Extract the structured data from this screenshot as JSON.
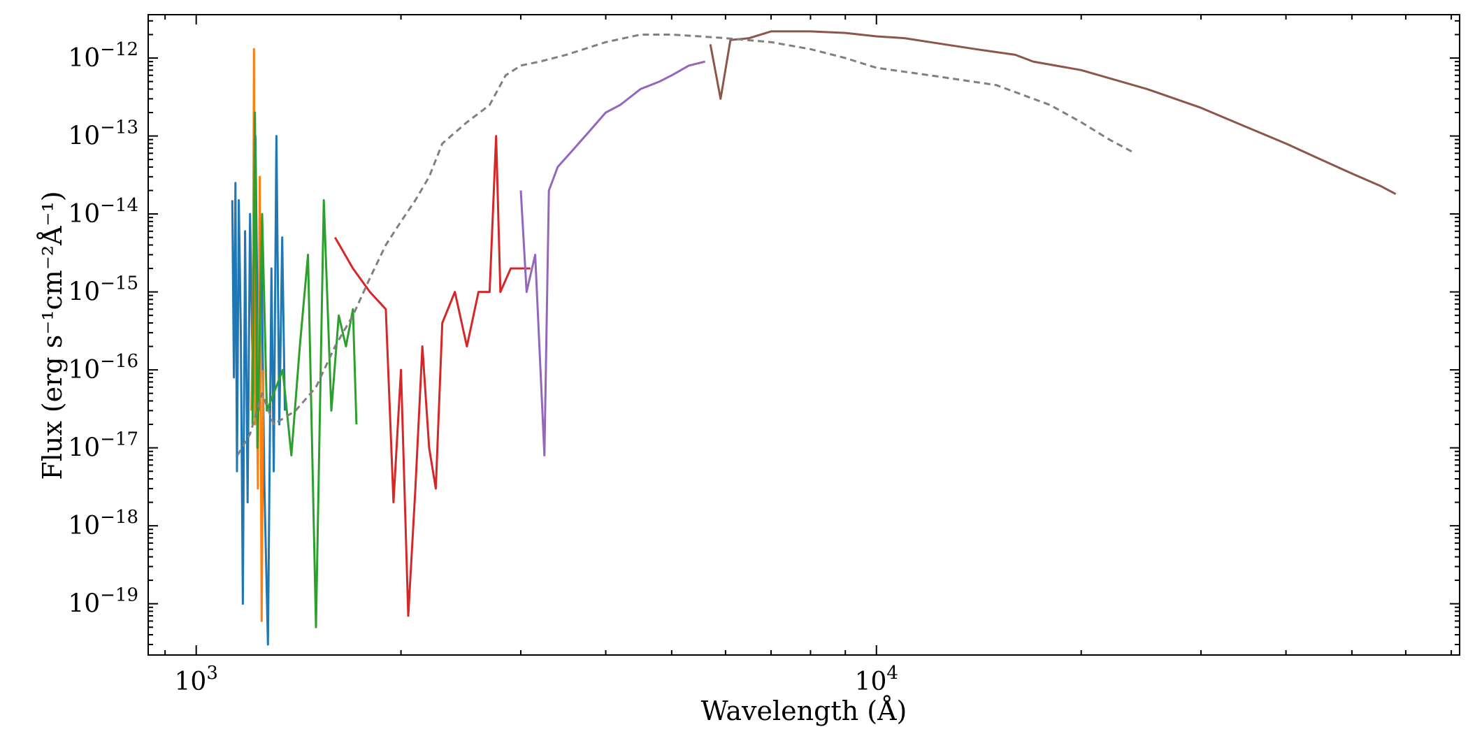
{
  "chart_data": {
    "type": "line",
    "xscale": "log",
    "yscale": "log",
    "xlim": [
      850,
      72000
    ],
    "ylim": [
      2.2e-20,
      3.6e-12
    ],
    "xlabel": "Wavelength (Å)",
    "ylabel": "Flux (erg s⁻¹cm⁻²Å⁻¹)",
    "x_ticks": [
      {
        "value": 1000,
        "label": "10",
        "exp": "3"
      },
      {
        "value": 10000,
        "label": "10",
        "exp": "4"
      }
    ],
    "y_ticks": [
      {
        "value": 1e-12,
        "label": "10",
        "exp": "−12"
      },
      {
        "value": 1e-13,
        "label": "10",
        "exp": "−13"
      },
      {
        "value": 1e-14,
        "label": "10",
        "exp": "−14"
      },
      {
        "value": 1e-15,
        "label": "10",
        "exp": "−15"
      },
      {
        "value": 1e-16,
        "label": "10",
        "exp": "−16"
      },
      {
        "value": 1e-17,
        "label": "10",
        "exp": "−17"
      },
      {
        "value": 1e-18,
        "label": "10",
        "exp": "−18"
      },
      {
        "value": 1e-19,
        "label": "10",
        "exp": "−19"
      }
    ],
    "grid": false,
    "legend": "none",
    "series": [
      {
        "color": "#1f77b4",
        "style": "solid",
        "x": [
          1130,
          1136,
          1142,
          1148,
          1155,
          1163,
          1171,
          1180,
          1190,
          1200,
          1212,
          1222,
          1235,
          1245,
          1260,
          1275,
          1290,
          1300,
          1312,
          1325,
          1338,
          1350
        ],
        "y": [
          1.5e-14,
          8e-17,
          2.5e-14,
          5e-18,
          1.5e-14,
          3e-16,
          1e-19,
          6e-15,
          2e-18,
          1e-14,
          5e-17,
          1e-13,
          3e-17,
          8e-15,
          3e-18,
          3e-20,
          2e-15,
          5e-18,
          1e-13,
          2e-17,
          5e-15,
          3e-17
        ]
      },
      {
        "color": "#ff7f0e",
        "style": "solid",
        "x": [
          1205,
          1212,
          1216,
          1220,
          1225,
          1232,
          1240,
          1248,
          1255
        ],
        "y": [
          3e-17,
          5e-16,
          1.3e-12,
          2e-17,
          6e-16,
          3e-18,
          3e-14,
          6e-20,
          1e-16
        ]
      },
      {
        "color": "#2ca02c",
        "style": "solid",
        "x": [
          1210,
          1220,
          1230,
          1250,
          1270,
          1300,
          1340,
          1380,
          1420,
          1460,
          1500,
          1540,
          1580,
          1620,
          1660,
          1700,
          1720
        ],
        "y": [
          2e-17,
          2e-13,
          1e-17,
          1e-14,
          3e-17,
          5e-17,
          1e-16,
          8e-18,
          2e-16,
          3e-15,
          5e-20,
          1.5e-14,
          3e-17,
          5e-16,
          2e-16,
          6e-16,
          2e-17
        ]
      },
      {
        "color": "#d62728",
        "style": "solid",
        "x": [
          1600,
          1700,
          1800,
          1900,
          1950,
          2000,
          2050,
          2100,
          2150,
          2200,
          2250,
          2300,
          2400,
          2500,
          2600,
          2700,
          2760,
          2800,
          2900,
          3000,
          3100
        ],
        "y": [
          5e-15,
          2e-15,
          1e-15,
          6e-16,
          2e-18,
          1e-16,
          7e-20,
          3e-18,
          2e-16,
          1e-17,
          3e-18,
          4e-16,
          1e-15,
          2e-16,
          1e-15,
          1e-15,
          1e-13,
          1e-15,
          2e-15,
          2e-15,
          2e-15
        ]
      },
      {
        "color": "#9467bd",
        "style": "solid",
        "x": [
          3000,
          3060,
          3150,
          3250,
          3300,
          3400,
          3600,
          3800,
          4000,
          4200,
          4500,
          4800,
          5000,
          5300,
          5600
        ],
        "y": [
          2e-14,
          1e-15,
          3e-15,
          8e-18,
          2e-14,
          4e-14,
          7e-14,
          1.2e-13,
          2e-13,
          2.5e-13,
          4e-13,
          5e-13,
          6e-13,
          8e-13,
          9e-13
        ]
      },
      {
        "color": "#8c564b",
        "style": "solid",
        "x": [
          5700,
          5900,
          6100,
          6500,
          7000,
          7500,
          8000,
          9000,
          10000,
          11000,
          12000,
          14000,
          16000,
          17000,
          20000,
          25000,
          30000,
          35000,
          40000,
          45000,
          50000,
          55000,
          58000
        ],
        "y": [
          1.5e-12,
          3e-13,
          1.7e-12,
          1.8e-12,
          2.2e-12,
          2.2e-12,
          2.2e-12,
          2.1e-12,
          1.9e-12,
          1.8e-12,
          1.6e-12,
          1.3e-12,
          1.1e-12,
          9e-13,
          7e-13,
          4e-13,
          2.3e-13,
          1.3e-13,
          8e-14,
          5e-14,
          3.3e-14,
          2.3e-14,
          1.8e-14
        ]
      },
      {
        "color": "#808080",
        "style": "dashed",
        "x": [
          1150,
          1200,
          1250,
          1300,
          1400,
          1500,
          1600,
          1700,
          1800,
          1900,
          2000,
          2100,
          2200,
          2300,
          2500,
          2700,
          2850,
          3000,
          3200,
          3500,
          4000,
          4500,
          5000,
          5500,
          6000,
          7000,
          8000,
          9000,
          10000,
          12000,
          15000,
          18000,
          20000,
          22000,
          24000
        ],
        "y": [
          8e-18,
          1.5e-17,
          5e-17,
          2e-17,
          3e-17,
          6e-17,
          2e-16,
          5e-16,
          1.5e-15,
          4e-15,
          8e-15,
          1.5e-14,
          3e-14,
          8e-14,
          1.5e-13,
          2.5e-13,
          6e-13,
          8e-13,
          9e-13,
          1.1e-12,
          1.6e-12,
          2e-12,
          2e-12,
          1.9e-12,
          1.8e-12,
          1.6e-12,
          1.3e-12,
          1e-12,
          7.5e-13,
          6e-13,
          4.5e-13,
          2.5e-13,
          1.5e-13,
          9e-14,
          6e-14
        ]
      }
    ]
  }
}
